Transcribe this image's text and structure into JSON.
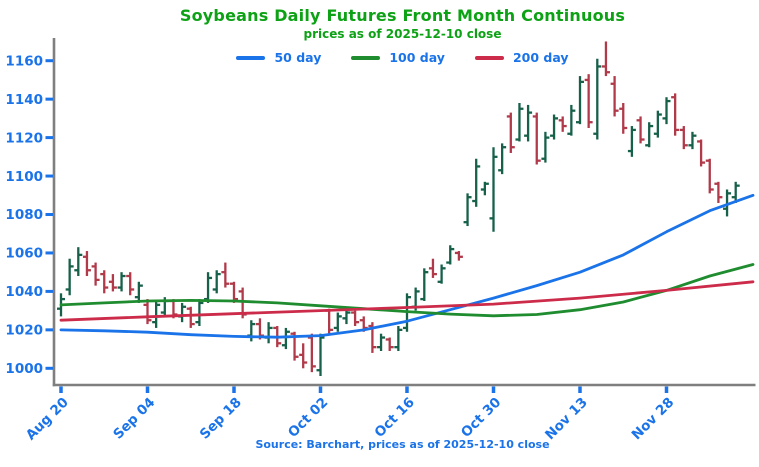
{
  "title": "Soybeans Daily Futures Front Month Continuous",
  "subtitle": "prices as of 2025-12-10 close",
  "source_note": "Source: Barchart, prices as of 2025-12-10 close",
  "colors": {
    "title_green": "#0da215",
    "axis_blue": "#1a73e8",
    "spine_gray": "#7f7f7f",
    "bar_up": "#17604a",
    "bar_down": "#b03a4a",
    "ma50": "#1a73e8",
    "ma100": "#1f8c2f",
    "ma200": "#cc2b4a",
    "background": "#ffffff"
  },
  "legend": {
    "items": [
      {
        "label": "50 day",
        "color_key": "ma50"
      },
      {
        "label": "100 day",
        "color_key": "ma100"
      },
      {
        "label": "200 day",
        "color_key": "ma200"
      }
    ]
  },
  "chart_data": {
    "type": "ohlc-bar",
    "title": "Soybeans Daily Futures Front Month Continuous",
    "subtitle": "prices as of 2025-12-10 close",
    "xlabel": "",
    "ylabel": "",
    "grid": false,
    "legend_position": "top",
    "ylim": [
      993,
      1172
    ],
    "yticks": [
      1000,
      1020,
      1040,
      1060,
      1080,
      1100,
      1120,
      1140,
      1160
    ],
    "xticks": [
      {
        "day": 0,
        "label": "Aug 20"
      },
      {
        "day": 10,
        "label": "Sep 04"
      },
      {
        "day": 20,
        "label": "Sep 18"
      },
      {
        "day": 30,
        "label": "Oct 02"
      },
      {
        "day": 40,
        "label": "Oct 16"
      },
      {
        "day": 50,
        "label": "Oct 30"
      },
      {
        "day": 60,
        "label": "Nov 13"
      },
      {
        "day": 70,
        "label": "Nov 28"
      }
    ],
    "bars_format": [
      "date",
      "open",
      "high",
      "low",
      "close"
    ],
    "bars": [
      [
        "Aug 20",
        1031,
        1039,
        1027,
        1036
      ],
      [
        "Aug 21",
        1041,
        1057,
        1038,
        1053
      ],
      [
        "Aug 22",
        1051,
        1063,
        1048,
        1059
      ],
      [
        "Aug 25",
        1058,
        1061,
        1048,
        1051
      ],
      [
        "Aug 26",
        1053,
        1055,
        1043,
        1046
      ],
      [
        "Aug 27",
        1049,
        1051,
        1039,
        1042
      ],
      [
        "Aug 28",
        1045,
        1049,
        1040,
        1042
      ],
      [
        "Aug 29",
        1042,
        1050,
        1040,
        1048
      ],
      [
        "Sep 02",
        1048,
        1050,
        1038,
        1041
      ],
      [
        "Sep 03",
        1037,
        1045,
        1034,
        1043
      ],
      [
        "Sep 04",
        1033,
        1036,
        1023,
        1025
      ],
      [
        "Sep 05",
        1024,
        1035,
        1021,
        1033
      ],
      [
        "Sep 08",
        1029,
        1037,
        1027,
        1035
      ],
      [
        "Sep 09",
        1035,
        1036,
        1026,
        1028
      ],
      [
        "Sep 10",
        1027,
        1034,
        1024,
        1032
      ],
      [
        "Sep 11",
        1031,
        1032,
        1021,
        1023
      ],
      [
        "Sep 12",
        1024,
        1036,
        1022,
        1034
      ],
      [
        "Sep 15",
        1036,
        1050,
        1034,
        1047
      ],
      [
        "Sep 16",
        1041,
        1051,
        1039,
        1049
      ],
      [
        "Sep 17",
        1050,
        1055,
        1042,
        1044
      ],
      [
        "Sep 18",
        1044,
        1045,
        1034,
        1036
      ],
      [
        "Sep 19",
        1040,
        1042,
        1026,
        1028
      ],
      [
        "Sep 22",
        1017,
        1025,
        1014,
        1023
      ],
      [
        "Sep 23",
        1023,
        1026,
        1015,
        1017
      ],
      [
        "Sep 24",
        1016,
        1024,
        1013,
        1021
      ],
      [
        "Sep 25",
        1021,
        1022,
        1011,
        1013
      ],
      [
        "Sep 26",
        1012,
        1021,
        1010,
        1019
      ],
      [
        "Sep 29",
        1018,
        1019,
        1004,
        1006
      ],
      [
        "Sep 30",
        1007,
        1013,
        1000,
        1003
      ],
      [
        "Oct 01",
        1016,
        1018,
        998,
        1001
      ],
      [
        "Oct 02",
        999,
        1018,
        996,
        1016
      ],
      [
        "Oct 03",
        1030,
        1031,
        1018,
        1020
      ],
      [
        "Oct 06",
        1021,
        1029,
        1019,
        1027
      ],
      [
        "Oct 07",
        1026,
        1031,
        1023,
        1029
      ],
      [
        "Oct 08",
        1029,
        1030,
        1022,
        1024
      ],
      [
        "Oct 09",
        1025,
        1027,
        1019,
        1021
      ],
      [
        "Oct 10",
        1022,
        1024,
        1008,
        1011
      ],
      [
        "Oct 13",
        1011,
        1018,
        1009,
        1016
      ],
      [
        "Oct 14",
        1015,
        1016,
        1009,
        1011
      ],
      [
        "Oct 15",
        1011,
        1022,
        1009,
        1020
      ],
      [
        "Oct 16",
        1021,
        1039,
        1019,
        1037
      ],
      [
        "Oct 17",
        1032,
        1042,
        1030,
        1040
      ],
      [
        "Oct 20",
        1036,
        1052,
        1035,
        1050
      ],
      [
        "Oct 21",
        1052,
        1057,
        1047,
        1049
      ],
      [
        "Oct 22",
        1045,
        1054,
        1044,
        1052
      ],
      [
        "Oct 23",
        1055,
        1064,
        1054,
        1062
      ],
      [
        "Oct 24",
        1060,
        1061,
        1056,
        1058
      ],
      [
        "Oct 27",
        1076,
        1091,
        1074,
        1089
      ],
      [
        "Oct 28",
        1087,
        1109,
        1084,
        1105
      ],
      [
        "Oct 29",
        1093,
        1097,
        1090,
        1096
      ],
      [
        "Oct 30",
        1078,
        1115,
        1071,
        1110
      ],
      [
        "Oct 31",
        1103,
        1117,
        1101,
        1115
      ],
      [
        "Nov 03",
        1131,
        1133,
        1112,
        1115
      ],
      [
        "Nov 04",
        1119,
        1138,
        1118,
        1135
      ],
      [
        "Nov 05",
        1121,
        1137,
        1118,
        1133
      ],
      [
        "Nov 06",
        1131,
        1133,
        1106,
        1108
      ],
      [
        "Nov 07",
        1109,
        1123,
        1107,
        1120
      ],
      [
        "Nov 10",
        1121,
        1132,
        1119,
        1130
      ],
      [
        "Nov 11",
        1129,
        1131,
        1123,
        1126
      ],
      [
        "Nov 12",
        1122,
        1137,
        1121,
        1134
      ],
      [
        "Nov 13",
        1128,
        1152,
        1127,
        1149
      ],
      [
        "Nov 14",
        1150,
        1153,
        1125,
        1128
      ],
      [
        "Nov 17",
        1122,
        1161,
        1119,
        1157
      ],
      [
        "Nov 18",
        1157,
        1170,
        1152,
        1154
      ],
      [
        "Nov 19",
        1148,
        1152,
        1131,
        1134
      ],
      [
        "Nov 20",
        1135,
        1138,
        1122,
        1125
      ],
      [
        "Nov 21",
        1113,
        1126,
        1110,
        1124
      ],
      [
        "Nov 24",
        1129,
        1131,
        1117,
        1119
      ],
      [
        "Nov 25",
        1116,
        1128,
        1115,
        1126
      ],
      [
        "Nov 26",
        1122,
        1134,
        1120,
        1132
      ],
      [
        "Nov 28",
        1130,
        1141,
        1127,
        1139
      ],
      [
        "Dec 01",
        1141,
        1143,
        1121,
        1124
      ],
      [
        "Dec 02",
        1124,
        1126,
        1114,
        1116
      ],
      [
        "Dec 03",
        1116,
        1123,
        1114,
        1121
      ],
      [
        "Dec 04",
        1118,
        1119,
        1105,
        1107
      ],
      [
        "Dec 05",
        1108,
        1109,
        1091,
        1093
      ],
      [
        "Dec 08",
        1096,
        1097,
        1086,
        1089
      ],
      [
        "Dec 09",
        1083,
        1093,
        1079,
        1091
      ],
      [
        "Dec 10",
        1089,
        1097,
        1086,
        1095
      ]
    ],
    "series": [
      {
        "name": "50 day",
        "color_key": "ma50",
        "points": [
          [
            0,
            1020
          ],
          [
            5,
            1019.5
          ],
          [
            10,
            1018.8
          ],
          [
            15,
            1017.5
          ],
          [
            20,
            1016.6
          ],
          [
            25,
            1016.2
          ],
          [
            30,
            1017
          ],
          [
            35,
            1020
          ],
          [
            40,
            1024.5
          ],
          [
            45,
            1030.5
          ],
          [
            50,
            1036.5
          ],
          [
            55,
            1043
          ],
          [
            60,
            1050
          ],
          [
            65,
            1059
          ],
          [
            70,
            1071
          ],
          [
            75,
            1082
          ],
          [
            80,
            1090
          ]
        ]
      },
      {
        "name": "100 day",
        "color_key": "ma100",
        "points": [
          [
            0,
            1033
          ],
          [
            5,
            1034
          ],
          [
            10,
            1035
          ],
          [
            15,
            1035.3
          ],
          [
            20,
            1035
          ],
          [
            25,
            1034
          ],
          [
            30,
            1032.5
          ],
          [
            35,
            1031
          ],
          [
            40,
            1029.5
          ],
          [
            45,
            1028.2
          ],
          [
            50,
            1027.3
          ],
          [
            55,
            1028
          ],
          [
            60,
            1030.5
          ],
          [
            65,
            1034.5
          ],
          [
            70,
            1040.5
          ],
          [
            75,
            1048
          ],
          [
            80,
            1054
          ]
        ]
      },
      {
        "name": "200 day",
        "color_key": "ma200",
        "points": [
          [
            0,
            1025
          ],
          [
            10,
            1026.8
          ],
          [
            20,
            1028.4
          ],
          [
            30,
            1030
          ],
          [
            40,
            1031.6
          ],
          [
            50,
            1033.4
          ],
          [
            60,
            1036.5
          ],
          [
            70,
            1040.5
          ],
          [
            80,
            1045
          ]
        ]
      }
    ]
  }
}
